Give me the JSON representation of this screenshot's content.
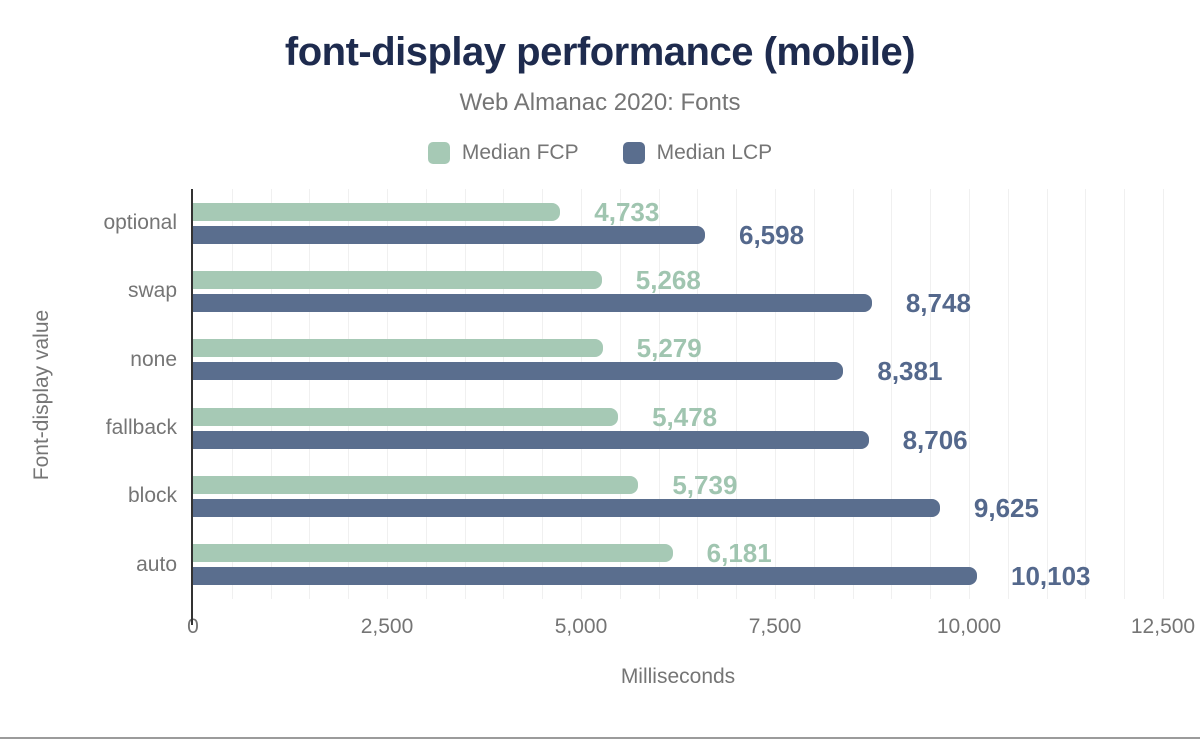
{
  "chart_data": {
    "type": "bar",
    "orientation": "horizontal",
    "title": "font-display performance (mobile)",
    "subtitle": "Web Almanac 2020: Fonts",
    "xlabel": "Milliseconds",
    "ylabel": "Font-display value",
    "xlim": [
      0,
      12500
    ],
    "gridline_interval_ms": 500,
    "x_ticks": [
      {
        "value": 0,
        "label": "0"
      },
      {
        "value": 2500,
        "label": "2,500"
      },
      {
        "value": 5000,
        "label": "5,000"
      },
      {
        "value": 7500,
        "label": "7,500"
      },
      {
        "value": 10000,
        "label": "10,000"
      },
      {
        "value": 12500,
        "label": "12,500"
      }
    ],
    "legend": [
      {
        "name": "Median FCP",
        "color": "#a6c9b5"
      },
      {
        "name": "Median LCP",
        "color": "#5a6e8e"
      }
    ],
    "categories": [
      "optional",
      "swap",
      "none",
      "fallback",
      "block",
      "auto"
    ],
    "series": [
      {
        "name": "Median FCP",
        "color": "#a6c9b5",
        "label_color": "#a0c5b0",
        "values": [
          4733,
          5268,
          5279,
          5478,
          5739,
          6181
        ],
        "labels": [
          "4,733",
          "5,268",
          "5,279",
          "5,478",
          "5,739",
          "6,181"
        ]
      },
      {
        "name": "Median LCP",
        "color": "#5a6e8e",
        "label_color": "#54688c",
        "values": [
          6598,
          8748,
          8381,
          8706,
          9625,
          10103
        ],
        "labels": [
          "6,598",
          "8,748",
          "8,381",
          "8,706",
          "9,625",
          "10,103"
        ]
      }
    ],
    "colors": {
      "title": "#1e2b4e",
      "muted_text": "#757575",
      "axis_line": "#333333",
      "gridline": "#f0f0f0"
    }
  }
}
